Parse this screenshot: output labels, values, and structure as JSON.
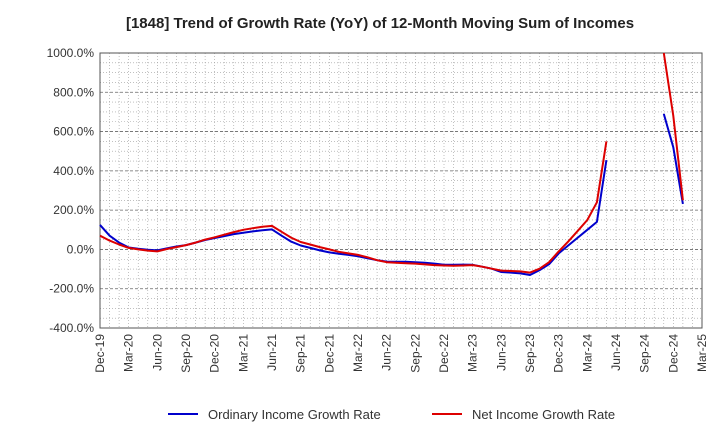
{
  "chart_data": {
    "type": "line",
    "title": "[1848]  Trend of Growth Rate (YoY) of 12-Month Moving Sum of Incomes",
    "xlabel": "",
    "ylabel": "",
    "ylim": [
      -400,
      1000
    ],
    "y_ticks": [
      "1000.0%",
      "800.0%",
      "600.0%",
      "400.0%",
      "200.0%",
      "0.0%",
      "-200.0%",
      "-400.0%"
    ],
    "y_tick_values": [
      1000,
      800,
      600,
      400,
      200,
      0,
      -200,
      -400
    ],
    "x_tick_labels": [
      "Dec-19",
      "Mar-20",
      "Jun-20",
      "Sep-20",
      "Dec-20",
      "Mar-21",
      "Jun-21",
      "Sep-21",
      "Dec-21",
      "Mar-22",
      "Jun-22",
      "Sep-22",
      "Dec-22",
      "Mar-23",
      "Jun-23",
      "Sep-23",
      "Dec-23",
      "Mar-24",
      "Jun-24",
      "Sep-24",
      "Dec-24",
      "Mar-25"
    ],
    "grid": true,
    "legend_position": "bottom",
    "series": [
      {
        "name": "Ordinary Income Growth Rate",
        "color": "#0000cc",
        "points": [
          [
            "2019-12",
            125
          ],
          [
            "2020-01",
            70
          ],
          [
            "2020-02",
            35
          ],
          [
            "2020-03",
            10
          ],
          [
            "2020-04",
            3
          ],
          [
            "2020-05",
            -2
          ],
          [
            "2020-06",
            -5
          ],
          [
            "2020-07",
            5
          ],
          [
            "2020-08",
            15
          ],
          [
            "2020-09",
            22
          ],
          [
            "2020-10",
            35
          ],
          [
            "2020-11",
            48
          ],
          [
            "2020-12",
            58
          ],
          [
            "2021-01",
            68
          ],
          [
            "2021-02",
            78
          ],
          [
            "2021-03",
            85
          ],
          [
            "2021-04",
            92
          ],
          [
            "2021-05",
            98
          ],
          [
            "2021-06",
            102
          ],
          [
            "2021-07",
            70
          ],
          [
            "2021-08",
            40
          ],
          [
            "2021-09",
            20
          ],
          [
            "2021-10",
            8
          ],
          [
            "2021-11",
            -5
          ],
          [
            "2021-12",
            -15
          ],
          [
            "2022-01",
            -22
          ],
          [
            "2022-02",
            -28
          ],
          [
            "2022-03",
            -35
          ],
          [
            "2022-04",
            -45
          ],
          [
            "2022-05",
            -55
          ],
          [
            "2022-06",
            -62
          ],
          [
            "2022-07",
            -63
          ],
          [
            "2022-08",
            -63
          ],
          [
            "2022-09",
            -65
          ],
          [
            "2022-10",
            -68
          ],
          [
            "2022-11",
            -72
          ],
          [
            "2022-12",
            -78
          ],
          [
            "2023-01",
            -78
          ],
          [
            "2023-02",
            -77
          ],
          [
            "2023-03",
            -78
          ],
          [
            "2023-04",
            -88
          ],
          [
            "2023-05",
            -98
          ],
          [
            "2023-06",
            -115
          ],
          [
            "2023-07",
            -118
          ],
          [
            "2023-08",
            -122
          ],
          [
            "2023-09",
            -130
          ],
          [
            "2023-10",
            -105
          ],
          [
            "2023-11",
            -75
          ],
          [
            "2023-12",
            -20
          ],
          [
            "2024-01",
            20
          ],
          [
            "2024-02",
            60
          ],
          [
            "2024-03",
            100
          ],
          [
            "2024-04",
            140
          ],
          [
            "2024-05",
            455
          ],
          [
            "2024-11",
            690
          ],
          [
            "2024-12",
            520
          ],
          [
            "2025-01",
            232
          ]
        ]
      },
      {
        "name": "Net Income Growth Rate",
        "color": "#dd0000",
        "points": [
          [
            "2019-12",
            70
          ],
          [
            "2020-01",
            45
          ],
          [
            "2020-02",
            25
          ],
          [
            "2020-03",
            8
          ],
          [
            "2020-04",
            0
          ],
          [
            "2020-05",
            -6
          ],
          [
            "2020-06",
            -10
          ],
          [
            "2020-07",
            2
          ],
          [
            "2020-08",
            12
          ],
          [
            "2020-09",
            22
          ],
          [
            "2020-10",
            35
          ],
          [
            "2020-11",
            50
          ],
          [
            "2020-12",
            62
          ],
          [
            "2021-01",
            75
          ],
          [
            "2021-02",
            88
          ],
          [
            "2021-03",
            100
          ],
          [
            "2021-04",
            108
          ],
          [
            "2021-05",
            115
          ],
          [
            "2021-06",
            120
          ],
          [
            "2021-07",
            90
          ],
          [
            "2021-08",
            60
          ],
          [
            "2021-09",
            38
          ],
          [
            "2021-10",
            25
          ],
          [
            "2021-11",
            12
          ],
          [
            "2021-12",
            0
          ],
          [
            "2022-01",
            -12
          ],
          [
            "2022-02",
            -20
          ],
          [
            "2022-03",
            -28
          ],
          [
            "2022-04",
            -40
          ],
          [
            "2022-05",
            -55
          ],
          [
            "2022-06",
            -65
          ],
          [
            "2022-07",
            -68
          ],
          [
            "2022-08",
            -70
          ],
          [
            "2022-09",
            -72
          ],
          [
            "2022-10",
            -76
          ],
          [
            "2022-11",
            -80
          ],
          [
            "2022-12",
            -82
          ],
          [
            "2023-01",
            -83
          ],
          [
            "2023-02",
            -82
          ],
          [
            "2023-03",
            -80
          ],
          [
            "2023-04",
            -88
          ],
          [
            "2023-05",
            -98
          ],
          [
            "2023-06",
            -108
          ],
          [
            "2023-07",
            -110
          ],
          [
            "2023-08",
            -112
          ],
          [
            "2023-09",
            -118
          ],
          [
            "2023-10",
            -98
          ],
          [
            "2023-11",
            -65
          ],
          [
            "2023-12",
            -10
          ],
          [
            "2024-01",
            40
          ],
          [
            "2024-02",
            95
          ],
          [
            "2024-03",
            150
          ],
          [
            "2024-04",
            240
          ],
          [
            "2024-05",
            550
          ],
          [
            "2024-11",
            1000
          ],
          [
            "2024-12",
            680
          ],
          [
            "2025-01",
            250
          ]
        ]
      }
    ]
  }
}
